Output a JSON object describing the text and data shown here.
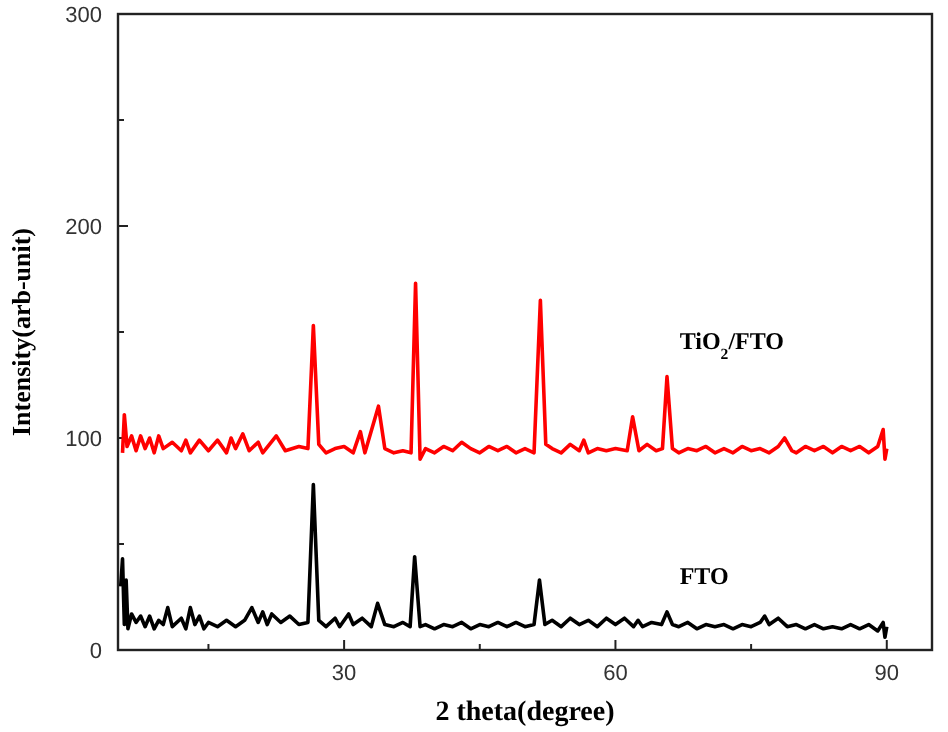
{
  "chart_data": {
    "type": "line",
    "xlabel": "2 theta(degree)",
    "ylabel": "Intensity(arb-unit)",
    "xlim": [
      5,
      95
    ],
    "ylim": [
      0,
      300
    ],
    "xticks": [
      {
        "value": 15,
        "label": null
      },
      30,
      {
        "value": 45,
        "label": null
      },
      60,
      {
        "value": 75,
        "label": null
      },
      90
    ],
    "yticks": [
      0,
      {
        "value": 50,
        "label": null
      },
      100,
      {
        "value": 150,
        "label": null
      },
      200,
      {
        "value": 250,
        "label": null
      },
      300
    ],
    "grid": false,
    "line_style": "solid",
    "series": [
      {
        "name": "TiO$_{2}$/FTO",
        "color": "#ff0000",
        "x": [
          5.5,
          5.7,
          6,
          6.5,
          7,
          7.5,
          8,
          8.5,
          9,
          9.5,
          10,
          11,
          12,
          12.5,
          13,
          14,
          15,
          16,
          17,
          17.5,
          18,
          18.8,
          19.5,
          20.5,
          21,
          22.5,
          23.5,
          25,
          26,
          26.6,
          27.2,
          28,
          29,
          30,
          31,
          31.8,
          32.3,
          33.8,
          34.5,
          35.5,
          36.5,
          37.4,
          37.9,
          38.4,
          39,
          40,
          41,
          42,
          43,
          44,
          45,
          46,
          47,
          48,
          49,
          50,
          51,
          51.7,
          52.3,
          53,
          54,
          55,
          56,
          56.5,
          57,
          58,
          59,
          60,
          61.3,
          61.9,
          62.6,
          63.5,
          64.5,
          65.2,
          65.7,
          66.3,
          67,
          68,
          69,
          70,
          71,
          72,
          73,
          74,
          75,
          76,
          77,
          78,
          78.7,
          79.5,
          80,
          81,
          82,
          83,
          84,
          85,
          86,
          87,
          88,
          89,
          89.6,
          89.8,
          90
        ],
        "values": [
          93,
          111,
          96,
          101,
          94,
          101,
          95,
          100,
          93,
          101,
          95,
          98,
          94,
          99,
          93,
          99,
          94,
          99,
          93,
          100,
          95,
          102,
          94,
          98,
          93,
          101,
          94,
          96,
          95,
          153,
          97,
          93,
          95,
          96,
          93,
          103,
          93,
          115,
          95,
          93,
          94,
          93,
          173,
          90,
          95,
          93,
          96,
          94,
          98,
          95,
          93,
          96,
          94,
          96,
          93,
          95,
          93,
          165,
          97,
          95,
          93,
          97,
          94,
          99,
          93,
          95,
          94,
          95,
          94,
          110,
          94,
          97,
          94,
          95,
          129,
          95,
          93,
          95,
          94,
          96,
          93,
          95,
          93,
          96,
          94,
          95,
          93,
          96,
          100,
          94,
          93,
          96,
          94,
          96,
          93,
          96,
          94,
          96,
          93,
          96,
          104,
          90,
          95
        ]
      },
      {
        "name": "FTO",
        "color": "#000000",
        "x": [
          5.3,
          5.5,
          5.7,
          5.9,
          6.1,
          6.5,
          7,
          7.5,
          8,
          8.5,
          9,
          9.5,
          10,
          10.5,
          11,
          12,
          12.5,
          13,
          13.5,
          14,
          14.5,
          15,
          16,
          17,
          18,
          19,
          19.8,
          20.5,
          21,
          21.5,
          22,
          23,
          24,
          25,
          26,
          26.6,
          27.2,
          28,
          29,
          29.5,
          30.5,
          31,
          32,
          33,
          33.7,
          34.5,
          35.5,
          36.5,
          37.3,
          37.8,
          38.4,
          39,
          40,
          41,
          42,
          43,
          44,
          45,
          46,
          47,
          48,
          49,
          50,
          51,
          51.6,
          52.2,
          53,
          54,
          55,
          56,
          57,
          58,
          59,
          60,
          61,
          62,
          62.5,
          63,
          64,
          65.1,
          65.7,
          66.3,
          67,
          68,
          69,
          70,
          71,
          72,
          73,
          74,
          75,
          76,
          76.5,
          77,
          78,
          79,
          80,
          81,
          82,
          83,
          84,
          85,
          86,
          87,
          88,
          89,
          89.6,
          89.8,
          90
        ],
        "values": [
          30,
          43,
          12,
          33,
          10,
          17,
          13,
          16,
          11,
          16,
          10,
          14,
          12,
          20,
          11,
          15,
          10,
          20,
          12,
          16,
          10,
          13,
          11,
          14,
          11,
          14,
          20,
          13,
          18,
          12,
          17,
          13,
          16,
          12,
          13,
          78,
          14,
          11,
          15,
          11,
          17,
          12,
          15,
          11,
          22,
          12,
          11,
          13,
          11,
          44,
          11,
          12,
          10,
          12,
          11,
          13,
          10,
          12,
          11,
          13,
          11,
          13,
          11,
          12,
          33,
          12,
          14,
          11,
          15,
          12,
          14,
          11,
          15,
          12,
          15,
          11,
          14,
          11,
          13,
          12,
          18,
          12,
          11,
          13,
          10,
          12,
          11,
          12,
          10,
          12,
          11,
          13,
          16,
          12,
          15,
          11,
          12,
          10,
          12,
          10,
          11,
          10,
          12,
          10,
          12,
          9,
          13,
          6,
          11
        ]
      }
    ]
  }
}
